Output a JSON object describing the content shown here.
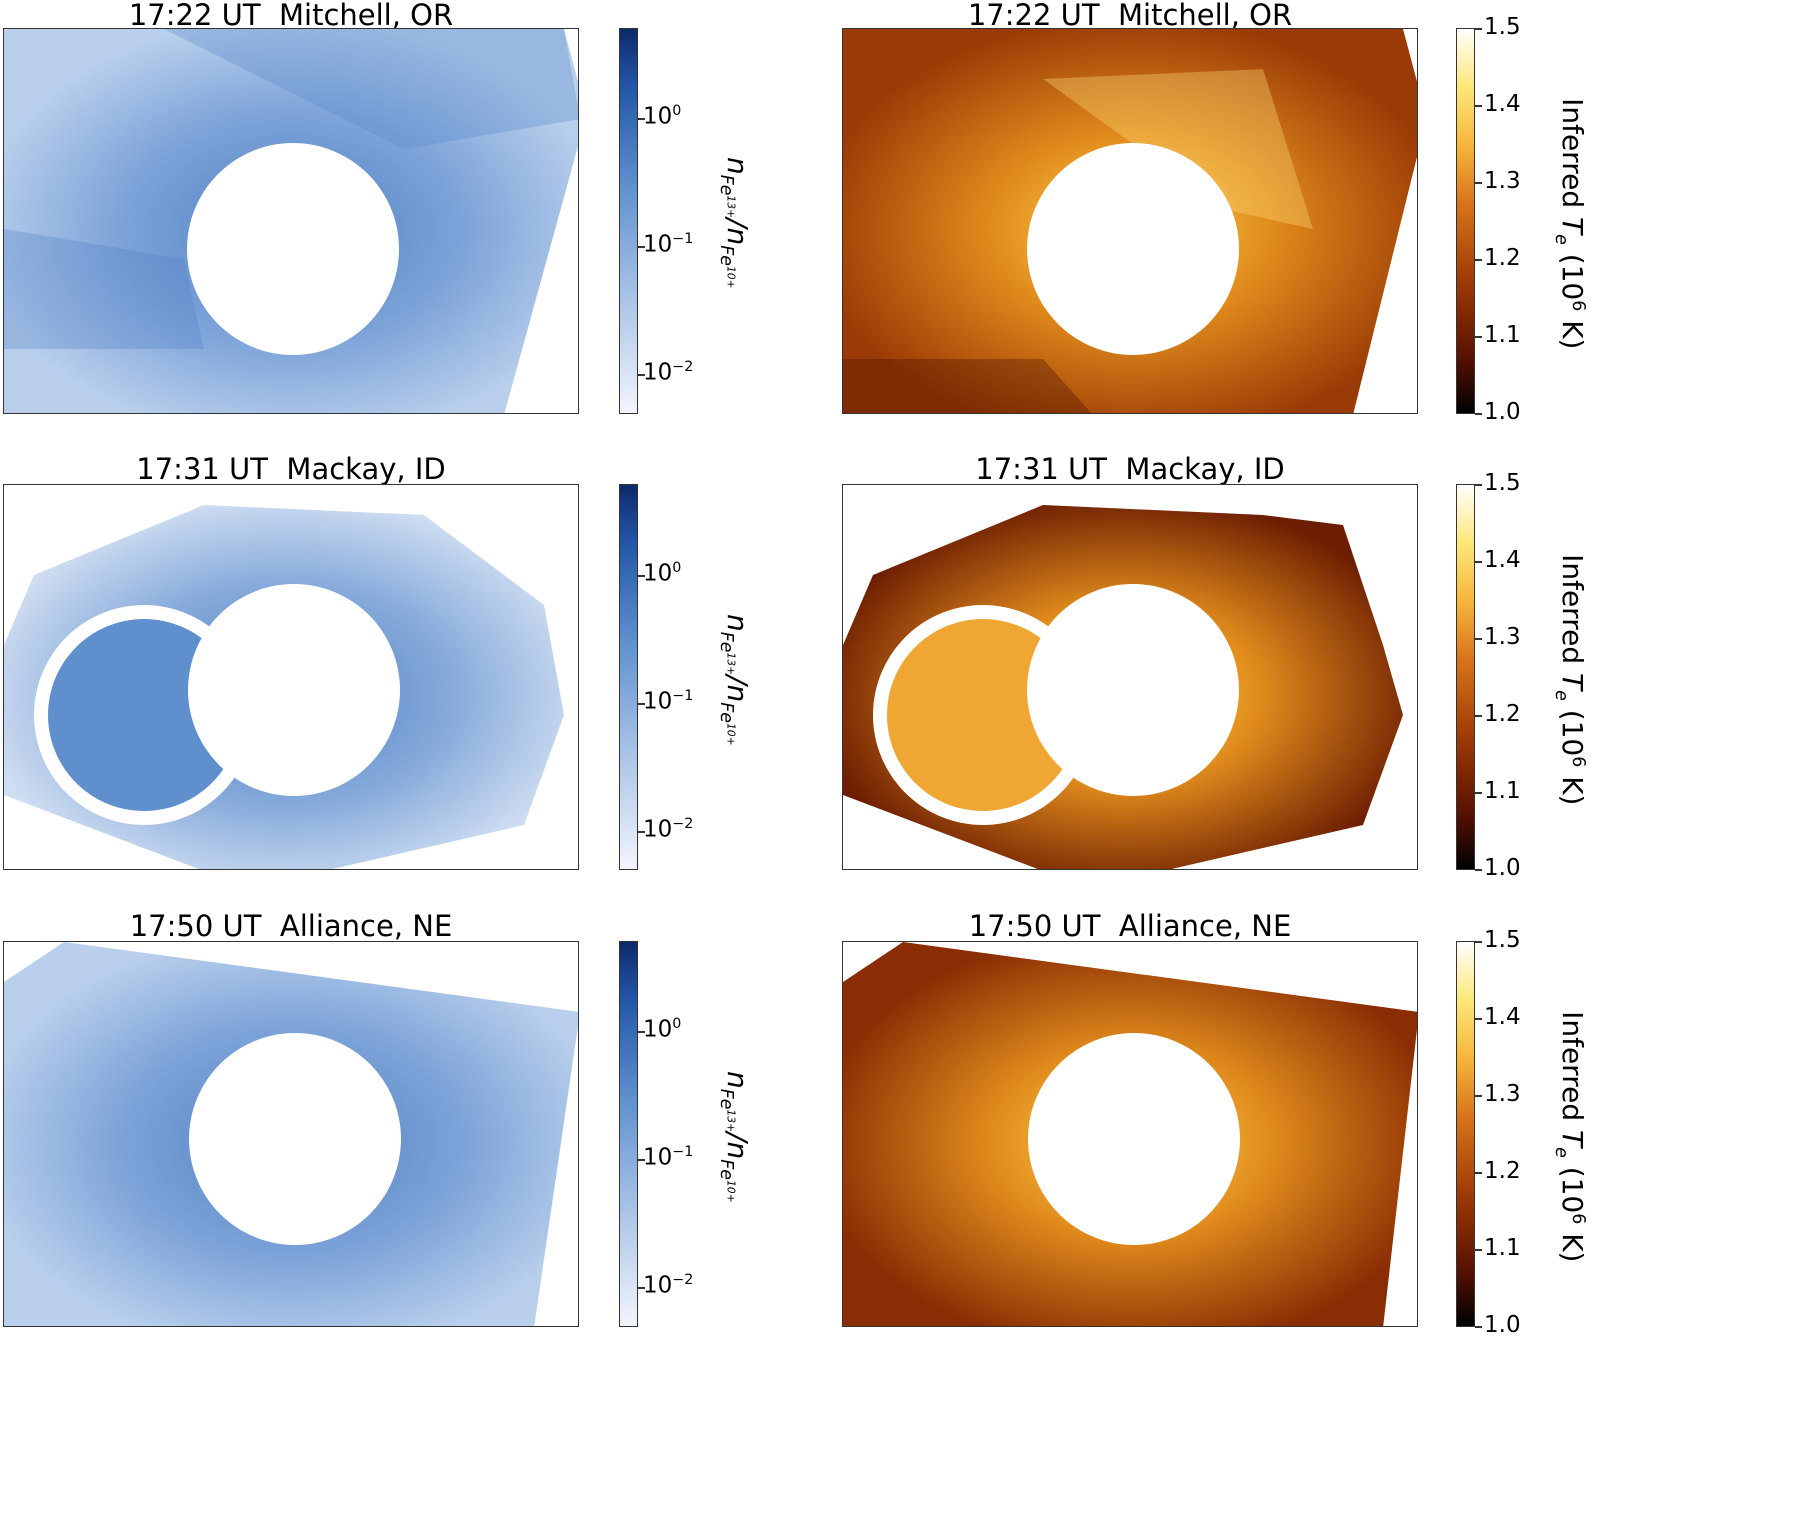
{
  "rows": [
    {
      "title": "17:22 UT  Mitchell, OR"
    },
    {
      "title": "17:31 UT  Mackay, ID"
    },
    {
      "title": "17:50 UT  Alliance, NE"
    }
  ],
  "ratio_colorbar": {
    "ticks": [
      "10",
      "10",
      "10"
    ],
    "exponents": [
      "0",
      "−1",
      "−2"
    ],
    "label_n": "n",
    "label_num_sub": "Fe",
    "label_num_sup": "13+",
    "label_slash": "/",
    "label_den_sub": "Fe",
    "label_den_sup": "10+",
    "colors": {
      "low": "#f2f5fb",
      "mid": "#5b8fcd",
      "high": "#0c2a6b"
    }
  },
  "temp_colorbar": {
    "ticks": [
      "1.5",
      "1.4",
      "1.3",
      "1.2",
      "1.1",
      "1.0"
    ],
    "label_prefix": "Inferred ",
    "label_T": "T",
    "label_T_sub": "e",
    "label_unit_open": " (10",
    "label_unit_sup": "6",
    "label_unit_close": " K)",
    "colors": {
      "low": "#000000",
      "mid": "#c8590a",
      "high": "#ffffff"
    }
  },
  "image_colors": {
    "blue_base": "#a9c3e6",
    "blue_dark": "#4f7fc2",
    "orange_base": "#b6500a",
    "orange_bright": "#ffd24a",
    "orange_dark": "#4a1200"
  }
}
